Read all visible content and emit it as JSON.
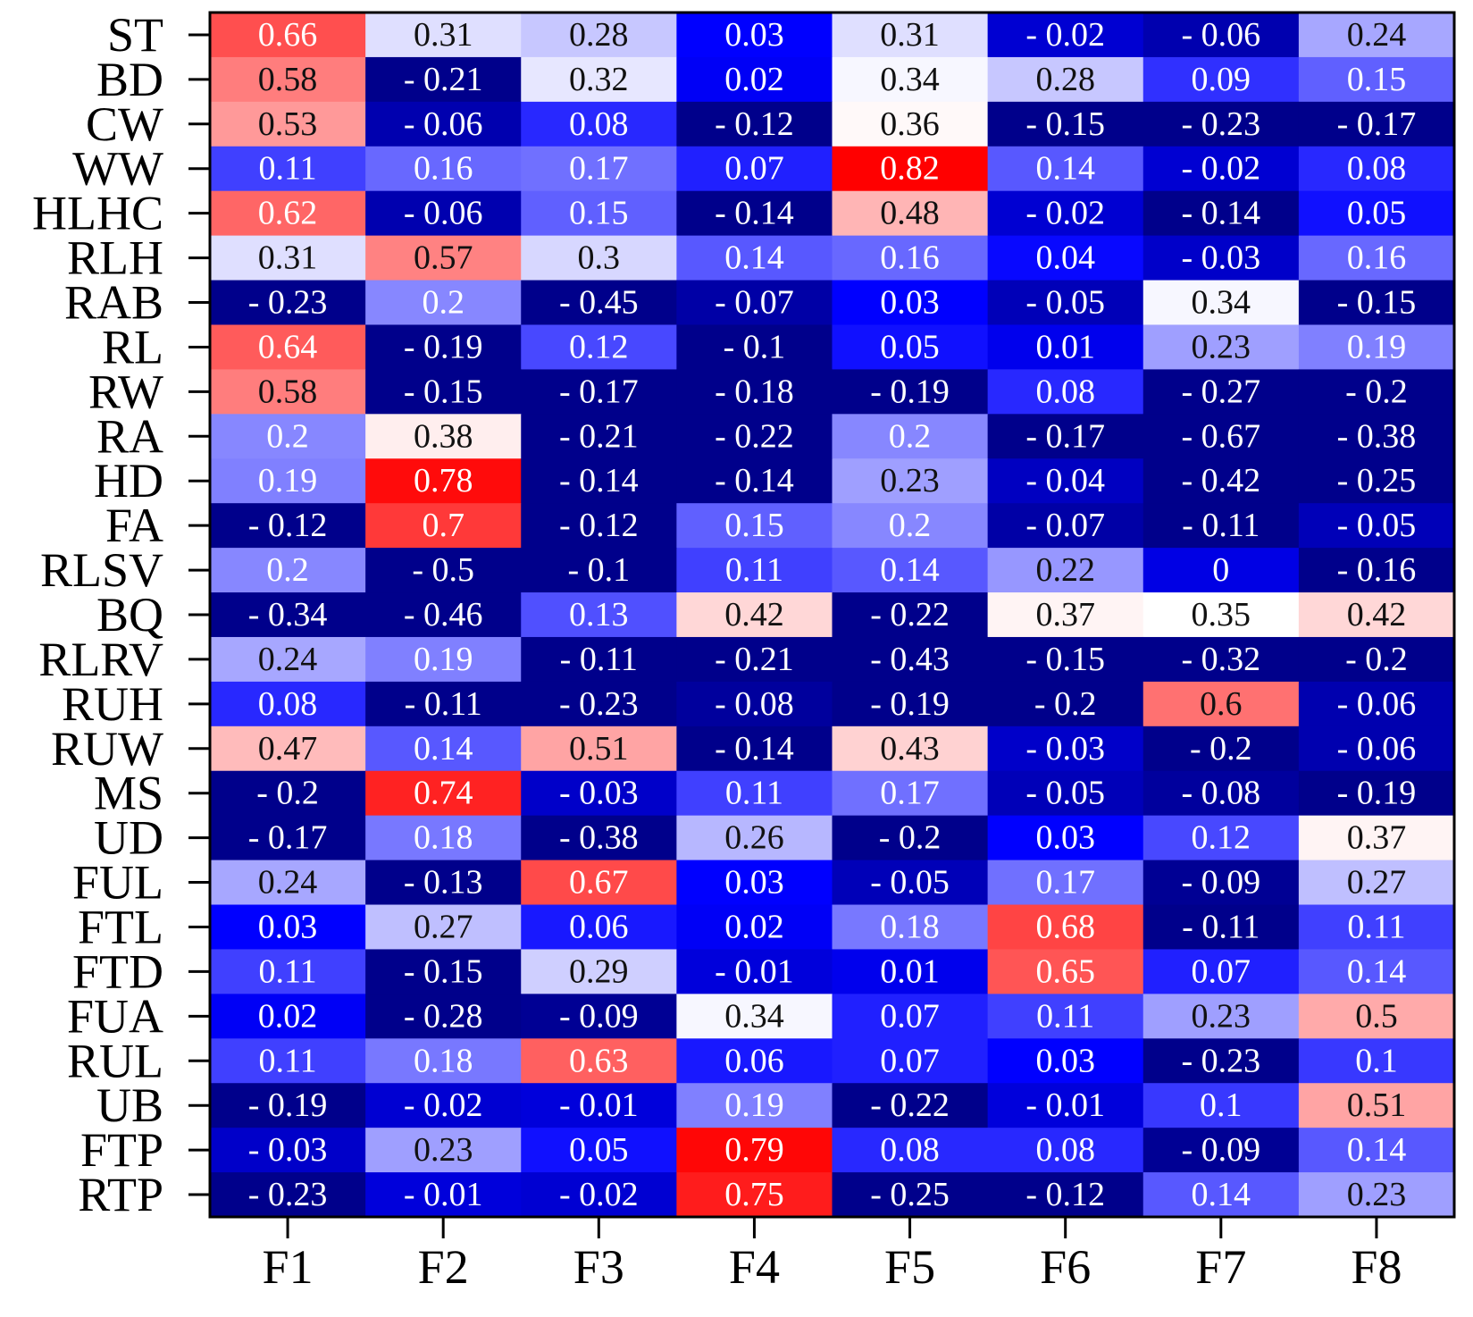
{
  "chart_data": {
    "type": "heatmap",
    "title": "",
    "xlabel": "",
    "ylabel": "",
    "rows": [
      "ST",
      "BD",
      "CW",
      "WW",
      "HLHC",
      "RLH",
      "RAB",
      "RL",
      "RW",
      "RA",
      "HD",
      "FA",
      "RLSV",
      "BQ",
      "RLRV",
      "RUH",
      "RUW",
      "MS",
      "UD",
      "FUL",
      "FTL",
      "FTD",
      "FUA",
      "RUL",
      "UB",
      "FTP",
      "RTP"
    ],
    "columns": [
      "F1",
      "F2",
      "F3",
      "F4",
      "F5",
      "F6",
      "F7",
      "F8"
    ],
    "values": [
      [
        0.66,
        0.31,
        0.28,
        0.03,
        0.31,
        -0.02,
        -0.06,
        0.24
      ],
      [
        0.58,
        -0.21,
        0.32,
        0.02,
        0.34,
        0.28,
        0.09,
        0.15
      ],
      [
        0.53,
        -0.06,
        0.08,
        -0.12,
        0.36,
        -0.15,
        -0.23,
        -0.17
      ],
      [
        0.11,
        0.16,
        0.17,
        0.07,
        0.82,
        0.14,
        -0.02,
        0.08
      ],
      [
        0.62,
        -0.06,
        0.15,
        -0.14,
        0.48,
        -0.02,
        -0.14,
        0.05
      ],
      [
        0.31,
        0.57,
        0.3,
        0.14,
        0.16,
        0.04,
        -0.03,
        0.16
      ],
      [
        -0.23,
        0.2,
        -0.45,
        -0.07,
        0.03,
        -0.05,
        0.34,
        -0.15
      ],
      [
        0.64,
        -0.19,
        0.12,
        -0.1,
        0.05,
        0.01,
        0.23,
        0.19
      ],
      [
        0.58,
        -0.15,
        -0.17,
        -0.18,
        -0.19,
        0.08,
        -0.27,
        -0.2
      ],
      [
        0.2,
        0.38,
        -0.21,
        -0.22,
        0.2,
        -0.17,
        -0.67,
        -0.38
      ],
      [
        0.19,
        0.78,
        -0.14,
        -0.14,
        0.23,
        -0.04,
        -0.42,
        -0.25
      ],
      [
        -0.12,
        0.7,
        -0.12,
        0.15,
        0.2,
        -0.07,
        -0.11,
        -0.05
      ],
      [
        0.2,
        -0.5,
        -0.1,
        0.11,
        0.14,
        0.22,
        0,
        -0.16
      ],
      [
        -0.34,
        -0.46,
        0.13,
        0.42,
        -0.22,
        0.37,
        0.35,
        0.42
      ],
      [
        0.24,
        0.19,
        -0.11,
        -0.21,
        -0.43,
        -0.15,
        -0.32,
        -0.2
      ],
      [
        0.08,
        -0.11,
        -0.23,
        -0.08,
        -0.19,
        -0.2,
        0.6,
        -0.06
      ],
      [
        0.47,
        0.14,
        0.51,
        -0.14,
        0.43,
        -0.03,
        -0.2,
        -0.06
      ],
      [
        -0.2,
        0.74,
        -0.03,
        0.11,
        0.17,
        -0.05,
        -0.08,
        -0.19
      ],
      [
        -0.17,
        0.18,
        -0.38,
        0.26,
        -0.2,
        0.03,
        0.12,
        0.37
      ],
      [
        0.24,
        -0.13,
        0.67,
        0.03,
        -0.05,
        0.17,
        -0.09,
        0.27
      ],
      [
        0.03,
        0.27,
        0.06,
        0.02,
        0.18,
        0.68,
        -0.11,
        0.11
      ],
      [
        0.11,
        -0.15,
        0.29,
        -0.01,
        0.01,
        0.65,
        0.07,
        0.14
      ],
      [
        0.02,
        -0.28,
        -0.09,
        0.34,
        0.07,
        0.11,
        0.23,
        0.5
      ],
      [
        0.11,
        0.18,
        0.63,
        0.06,
        0.07,
        0.03,
        -0.23,
        0.1
      ],
      [
        -0.19,
        -0.02,
        -0.01,
        0.19,
        -0.22,
        -0.01,
        0.1,
        0.51
      ],
      [
        -0.03,
        0.23,
        0.05,
        0.79,
        0.08,
        0.08,
        -0.09,
        0.14
      ],
      [
        -0.23,
        -0.01,
        -0.02,
        0.75,
        -0.25,
        -0.12,
        0.14,
        0.23
      ]
    ],
    "cell_labels": [
      [
        "0.66",
        "0.31",
        "0.28",
        "0.03",
        "0.31",
        "- 0.02",
        "- 0.06",
        "0.24"
      ],
      [
        "0.58",
        "- 0.21",
        "0.32",
        "0.02",
        "0.34",
        "0.28",
        "0.09",
        "0.15"
      ],
      [
        "0.53",
        "- 0.06",
        "0.08",
        "- 0.12",
        "0.36",
        "- 0.15",
        "- 0.23",
        "- 0.17"
      ],
      [
        "0.11",
        "0.16",
        "0.17",
        "0.07",
        "0.82",
        "0.14",
        "- 0.02",
        "0.08"
      ],
      [
        "0.62",
        "- 0.06",
        "0.15",
        "- 0.14",
        "0.48",
        "- 0.02",
        "- 0.14",
        "0.05"
      ],
      [
        "0.31",
        "0.57",
        "0.3",
        "0.14",
        "0.16",
        "0.04",
        "- 0.03",
        "0.16"
      ],
      [
        "- 0.23",
        "0.2",
        "- 0.45",
        "- 0.07",
        "0.03",
        "- 0.05",
        "0.34",
        "- 0.15"
      ],
      [
        "0.64",
        "- 0.19",
        "0.12",
        "- 0.1",
        "0.05",
        "0.01",
        "0.23",
        "0.19"
      ],
      [
        "0.58",
        "- 0.15",
        "- 0.17",
        "- 0.18",
        "- 0.19",
        "0.08",
        "- 0.27",
        "- 0.2"
      ],
      [
        "0.2",
        "0.38",
        "- 0.21",
        "- 0.22",
        "0.2",
        "- 0.17",
        "- 0.67",
        "- 0.38"
      ],
      [
        "0.19",
        "0.78",
        "- 0.14",
        "- 0.14",
        "0.23",
        "- 0.04",
        "- 0.42",
        "- 0.25"
      ],
      [
        "- 0.12",
        "0.7",
        "- 0.12",
        "0.15",
        "0.2",
        "- 0.07",
        "- 0.11",
        "- 0.05"
      ],
      [
        "0.2",
        "- 0.5",
        "- 0.1",
        "0.11",
        "0.14",
        "0.22",
        "0",
        "- 0.16"
      ],
      [
        "- 0.34",
        "- 0.46",
        "0.13",
        "0.42",
        "- 0.22",
        "0.37",
        "0.35",
        "0.42"
      ],
      [
        "0.24",
        "0.19",
        "- 0.11",
        "- 0.21",
        "- 0.43",
        "- 0.15",
        "- 0.32",
        "- 0.2"
      ],
      [
        "0.08",
        "- 0.11",
        "- 0.23",
        "- 0.08",
        "- 0.19",
        "- 0.2",
        "0.6",
        "- 0.06"
      ],
      [
        "0.47",
        "0.14",
        "0.51",
        "- 0.14",
        "0.43",
        "- 0.03",
        "- 0.2",
        "- 0.06"
      ],
      [
        "- 0.2",
        "0.74",
        "- 0.03",
        "0.11",
        "0.17",
        "- 0.05",
        "- 0.08",
        "- 0.19"
      ],
      [
        "- 0.17",
        "0.18",
        "- 0.38",
        "0.26",
        "- 0.2",
        "0.03",
        "0.12",
        "0.37"
      ],
      [
        "0.24",
        "- 0.13",
        "0.67",
        "0.03",
        "- 0.05",
        "0.17",
        "- 0.09",
        "0.27"
      ],
      [
        "0.03",
        "0.27",
        "0.06",
        "0.02",
        "0.18",
        "0.68",
        "- 0.11",
        "0.11"
      ],
      [
        "0.11",
        "- 0.15",
        "0.29",
        "- 0.01",
        "0.01",
        "0.65",
        "0.07",
        "0.14"
      ],
      [
        "0.02",
        "- 0.28",
        "- 0.09",
        "0.34",
        "0.07",
        "0.11",
        "0.23",
        "0.5"
      ],
      [
        "0.11",
        "0.18",
        "0.63",
        "0.06",
        "0.07",
        "0.03",
        "- 0.23",
        "0.1"
      ],
      [
        "- 0.19",
        "- 0.02",
        "- 0.01",
        "0.19",
        "- 0.22",
        "- 0.01",
        "0.1",
        "0.51"
      ],
      [
        "- 0.03",
        "0.23",
        "0.05",
        "0.79",
        "0.08",
        "0.08",
        "- 0.09",
        "0.14"
      ],
      [
        "- 0.23",
        "- 0.01",
        "- 0.02",
        "0.75",
        "- 0.25",
        "- 0.12",
        "0.14",
        "0.23"
      ]
    ],
    "color_scale": {
      "stops": [
        {
          "value": -0.1,
          "color": "#00008b"
        },
        {
          "value": 0.03,
          "color": "#0000ff"
        },
        {
          "value": 0.35,
          "color": "#ffffff"
        },
        {
          "value": 0.8,
          "color": "#ff0000"
        }
      ]
    },
    "grid": false,
    "legend": "none"
  }
}
